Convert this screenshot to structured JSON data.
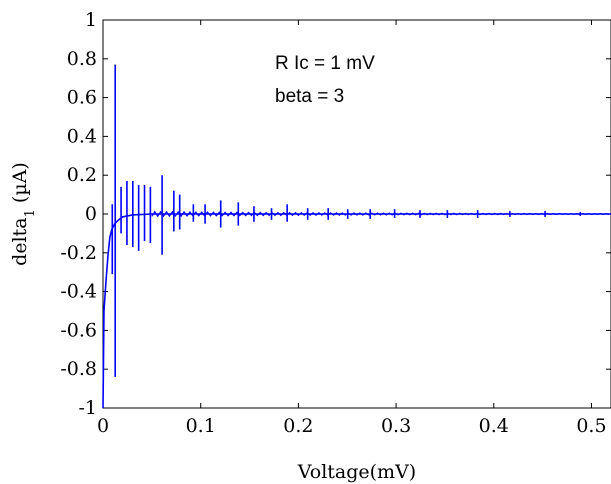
{
  "chart_data": {
    "type": "line",
    "title": "",
    "xlabel": "Voltage(mV)",
    "ylabel_main": "delta",
    "ylabel_sub": "1",
    "ylabel_unit": " (µA)",
    "xlim": [
      0,
      0.52
    ],
    "ylim": [
      -1,
      1
    ],
    "xticks": [
      0,
      0.1,
      0.2,
      0.3,
      0.4,
      0.5
    ],
    "xtick_labels": [
      "0",
      "0.1",
      "0.2",
      "0.3",
      "0.4",
      "0.5"
    ],
    "yticks": [
      -1,
      -0.8,
      -0.6,
      -0.4,
      -0.2,
      0,
      0.2,
      0.4,
      0.6,
      0.8,
      1
    ],
    "ytick_labels": [
      "-1",
      "-0.8",
      "-0.6",
      "-0.4",
      "-0.2",
      "0",
      "0.2",
      "0.4",
      "0.6",
      "0.8",
      "1"
    ],
    "grid": false,
    "annotations": [
      "R Ic = 1 mV",
      "beta = 3"
    ],
    "line_color": "#0000ff",
    "baseline": [
      [
        0.0,
        -1.0
      ],
      [
        0.001,
        -0.5
      ],
      [
        0.003,
        -0.35
      ],
      [
        0.005,
        -0.22
      ],
      [
        0.007,
        -0.12
      ],
      [
        0.009,
        -0.08
      ],
      [
        0.012,
        -0.05
      ],
      [
        0.016,
        -0.03
      ],
      [
        0.02,
        -0.015
      ],
      [
        0.03,
        -0.005
      ],
      [
        0.05,
        0.0
      ],
      [
        0.52,
        0.0
      ]
    ],
    "spikes": [
      [
        0.0095,
        0.05,
        -0.31
      ],
      [
        0.0125,
        0.77,
        -0.84
      ],
      [
        0.0185,
        0.14,
        -0.1
      ],
      [
        0.0245,
        0.17,
        -0.16
      ],
      [
        0.0305,
        0.17,
        -0.17
      ],
      [
        0.0365,
        0.15,
        -0.19
      ],
      [
        0.0425,
        0.15,
        -0.14
      ],
      [
        0.0485,
        0.14,
        -0.15
      ],
      [
        0.0605,
        0.2,
        -0.21
      ],
      [
        0.0725,
        0.12,
        -0.09
      ],
      [
        0.0785,
        0.1,
        -0.08
      ],
      [
        0.0925,
        0.05,
        -0.04
      ],
      [
        0.1045,
        0.05,
        -0.05
      ],
      [
        0.1205,
        0.07,
        -0.07
      ],
      [
        0.1385,
        0.06,
        -0.06
      ],
      [
        0.1545,
        0.04,
        -0.04
      ],
      [
        0.1725,
        0.03,
        -0.03
      ],
      [
        0.1885,
        0.05,
        -0.04
      ],
      [
        0.2095,
        0.03,
        -0.03
      ],
      [
        0.2305,
        0.03,
        -0.03
      ],
      [
        0.2505,
        0.025,
        -0.025
      ],
      [
        0.2735,
        0.025,
        -0.025
      ],
      [
        0.2985,
        0.025,
        -0.02
      ],
      [
        0.3245,
        0.02,
        -0.02
      ],
      [
        0.3525,
        0.02,
        -0.02
      ],
      [
        0.3835,
        0.02,
        -0.02
      ],
      [
        0.4165,
        0.015,
        -0.015
      ],
      [
        0.4525,
        0.015,
        -0.015
      ],
      [
        0.4885,
        0.01,
        -0.01
      ]
    ]
  }
}
